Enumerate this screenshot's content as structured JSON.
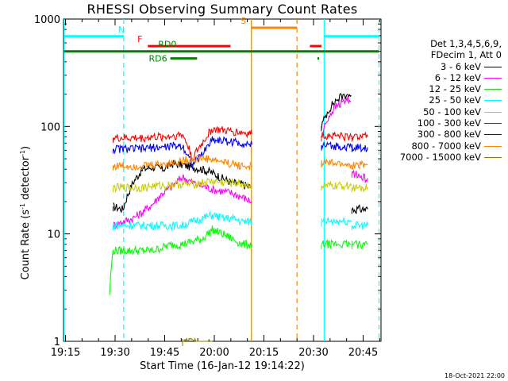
{
  "chart_data": {
    "type": "line",
    "title": "RHESSI Observing Summary Count Rates",
    "xlabel": "Start Time (16-Jan-12 19:14:22)",
    "ylabel_main": "Count Rate (s",
    "ylabel_exp": "-1",
    "ylabel_tail": " detector",
    "ylabel_exp2": "-1",
    "ylabel_close": ")",
    "yscale": "log",
    "ylim": [
      1,
      1000
    ],
    "xlim_minutes": [
      0,
      96
    ],
    "x_ticks": [
      "19:15",
      "19:30",
      "19:45",
      "20:00",
      "20:15",
      "20:30",
      "20:45"
    ],
    "x_tick_minutes": [
      0.6,
      15.6,
      30.6,
      45.6,
      60.6,
      75.6,
      90.6
    ],
    "y_ticks": [
      "1",
      "10",
      "100",
      "1000"
    ],
    "y_tick_values": [
      1,
      10,
      100,
      1000
    ],
    "legend_header_1": "Det 1,3,4,5,6,9,",
    "legend_header_2": "FDecim 1, Att 0",
    "series": [
      {
        "name": "3 - 6 keV",
        "color": "#000000",
        "segments": [
          {
            "x": [
              15,
              18,
              21,
              24,
              27,
              30,
              33,
              36,
              39,
              42,
              45,
              48,
              51,
              54,
              57
            ],
            "y": [
              18,
              17,
              30,
              40,
              42,
              40,
              45,
              44,
              42,
              40,
              37,
              33,
              30,
              29,
              27
            ]
          },
          {
            "x": [
              78,
              80,
              82,
              84,
              86,
              87
            ],
            "y": [
              100,
              140,
              170,
              190,
              200,
              195
            ]
          },
          {
            "x": [
              87.2,
              88,
              89,
              90,
              90.5,
              91,
              92
            ],
            "y": [
              17,
              17,
              17,
              17,
              17,
              17,
              17
            ]
          }
        ]
      },
      {
        "name": "6 - 12 keV",
        "color": "#ff00ff",
        "segments": [
          {
            "x": [
              15,
              18,
              21,
              24,
              27,
              30,
              33,
              36,
              39,
              42,
              45,
              48,
              51,
              54,
              57
            ],
            "y": [
              12,
              13,
              14,
              16,
              19,
              24,
              28,
              34,
              30,
              28,
              26,
              25,
              24,
              22,
              20
            ]
          },
          {
            "x": [
              78,
              80,
              82,
              84,
              86,
              87
            ],
            "y": [
              80,
              120,
              150,
              165,
              180,
              170
            ]
          },
          {
            "x": [
              87.2,
              88,
              89,
              90,
              91,
              92
            ],
            "y": [
              37,
              36,
              35,
              34,
              33,
              33
            ]
          }
        ]
      },
      {
        "name": "12 - 25 keV",
        "color": "#00ff00",
        "segments": [
          {
            "x": [
              14,
              15,
              18,
              21,
              24,
              27,
              30,
              33,
              36,
              39,
              42,
              45,
              48,
              51,
              54,
              57
            ],
            "y": [
              3,
              7,
              7,
              7,
              7,
              7,
              7.5,
              8,
              8,
              8.5,
              9,
              11,
              10,
              9,
              8,
              8
            ]
          },
          {
            "x": [
              78,
              80,
              82,
              84,
              86,
              87
            ],
            "y": [
              8,
              8,
              8,
              8,
              8,
              8
            ]
          },
          {
            "x": [
              87.2,
              88,
              89,
              90,
              91,
              92
            ],
            "y": [
              8,
              8,
              8,
              8,
              8,
              8
            ]
          }
        ]
      },
      {
        "name": "25 - 50 keV",
        "color": "#00ffff",
        "segments": [
          {
            "x": [
              15,
              18,
              21,
              24,
              27,
              30,
              33,
              36,
              39,
              42,
              45,
              48,
              51,
              54,
              57
            ],
            "y": [
              12,
              12,
              12,
              12,
              12,
              12,
              12,
              12,
              13,
              14,
              15,
              14,
              14,
              13,
              13
            ]
          },
          {
            "x": [
              78,
              80,
              82,
              84,
              86,
              87
            ],
            "y": [
              13,
              13,
              13,
              13,
              13,
              13
            ]
          },
          {
            "x": [
              87.2,
              88,
              89,
              90,
              91,
              92
            ],
            "y": [
              12,
              12,
              12,
              12,
              12,
              12
            ]
          }
        ]
      },
      {
        "name": "50 - 100 keV",
        "color": "#cccc00",
        "segments": [
          {
            "x": [
              15,
              18,
              21,
              24,
              27,
              30,
              33,
              36,
              39,
              42,
              45,
              48,
              51,
              54,
              57
            ],
            "y": [
              27,
              27,
              27,
              27,
              28,
              28,
              29,
              29,
              29,
              30,
              31,
              30,
              30,
              29,
              28
            ]
          },
          {
            "x": [
              78,
              80,
              82,
              84,
              86,
              87
            ],
            "y": [
              28,
              28,
              28,
              28,
              28,
              28
            ]
          },
          {
            "x": [
              87.2,
              88,
              89,
              90,
              91,
              92
            ],
            "y": [
              27,
              27,
              27,
              27,
              27,
              27
            ]
          }
        ]
      },
      {
        "name": "100 - 300 keV",
        "color": "#ff0000",
        "segments": [
          {
            "x": [
              15,
              18,
              21,
              24,
              27,
              30,
              33,
              36,
              39,
              42,
              45,
              48,
              51,
              54,
              57
            ],
            "y": [
              78,
              78,
              78,
              78,
              80,
              80,
              82,
              84,
              50,
              70,
              95,
              92,
              90,
              88,
              85
            ]
          },
          {
            "x": [
              78,
              80,
              82,
              84,
              86,
              87
            ],
            "y": [
              82,
              82,
              82,
              82,
              80,
              80
            ]
          },
          {
            "x": [
              87.2,
              88,
              89,
              90,
              91,
              92
            ],
            "y": [
              80,
              80,
              80,
              80,
              80,
              80
            ]
          }
        ]
      },
      {
        "name": "300 - 800 keV",
        "color": "#0000ff",
        "segments": [
          {
            "x": [
              15,
              18,
              21,
              24,
              27,
              30,
              33,
              36,
              39,
              42,
              45,
              48,
              51,
              54,
              57
            ],
            "y": [
              62,
              62,
              62,
              62,
              64,
              64,
              66,
              66,
              44,
              55,
              76,
              74,
              72,
              70,
              68
            ]
          },
          {
            "x": [
              78,
              80,
              82,
              84,
              86,
              87
            ],
            "y": [
              66,
              66,
              66,
              66,
              64,
              64
            ]
          },
          {
            "x": [
              87.2,
              88,
              89,
              90,
              91,
              92
            ],
            "y": [
              64,
              64,
              64,
              64,
              64,
              64
            ]
          }
        ]
      },
      {
        "name": "800 - 7000 keV",
        "color": "#ff8800",
        "segments": [
          {
            "x": [
              15,
              18,
              21,
              24,
              27,
              30,
              33,
              36,
              39,
              42,
              45,
              48,
              51,
              54,
              57
            ],
            "y": [
              43,
              43,
              43,
              43,
              44,
              45,
              46,
              48,
              50,
              51,
              49,
              47,
              45,
              43,
              42
            ]
          },
          {
            "x": [
              78,
              80,
              82,
              84,
              86,
              87
            ],
            "y": [
              46,
              46,
              45,
              45,
              44,
              44
            ]
          },
          {
            "x": [
              87.2,
              88,
              89,
              90,
              91,
              92
            ],
            "y": [
              44,
              44,
              44,
              44,
              44,
              44
            ]
          }
        ]
      },
      {
        "name": "7000 - 15000 keV",
        "color": "#808000",
        "segments": [
          {
            "x": [
              36,
              39,
              42,
              45
            ],
            "y": [
              1,
              1,
              1,
              1
            ]
          }
        ]
      }
    ],
    "vertical_lines": [
      {
        "x": 0.2,
        "color": "#00ffff",
        "style": "solid"
      },
      {
        "x": 18.2,
        "color": "#00ffff",
        "style": "dashed"
      },
      {
        "x": 56.8,
        "color": "#ff8800",
        "style": "solid"
      },
      {
        "x": 70.6,
        "color": "#ff8800",
        "style": "dashed"
      },
      {
        "x": 78.8,
        "color": "#00ffff",
        "style": "solid"
      },
      {
        "x": 95.4,
        "color": "#00ffff",
        "style": "dashed"
      }
    ],
    "flag_bars": [
      {
        "label": "N",
        "color": "#00ffff",
        "y": 690,
        "ranges": [
          [
            0.2,
            18.2
          ],
          [
            78.8,
            95.4
          ]
        ]
      },
      {
        "label": "S",
        "color": "#ff8800",
        "y": 830,
        "ranges": [
          [
            56.8,
            70.6
          ]
        ]
      },
      {
        "label": "F",
        "color": "#ff0000",
        "y": 560,
        "ranges": [
          [
            25.5,
            50.5
          ],
          [
            74.5,
            78.0
          ]
        ]
      },
      {
        "label": "RD0",
        "color": "#008000",
        "y": 500,
        "ranges": [
          [
            0.2,
            95.4
          ]
        ]
      },
      {
        "label": "RD6",
        "color": "#008000",
        "y": 430,
        "ranges": [
          [
            32.3,
            40.4
          ],
          [
            76.8,
            77.3
          ]
        ]
      }
    ]
  },
  "timestamp": "18-Oct-2021 22:00"
}
